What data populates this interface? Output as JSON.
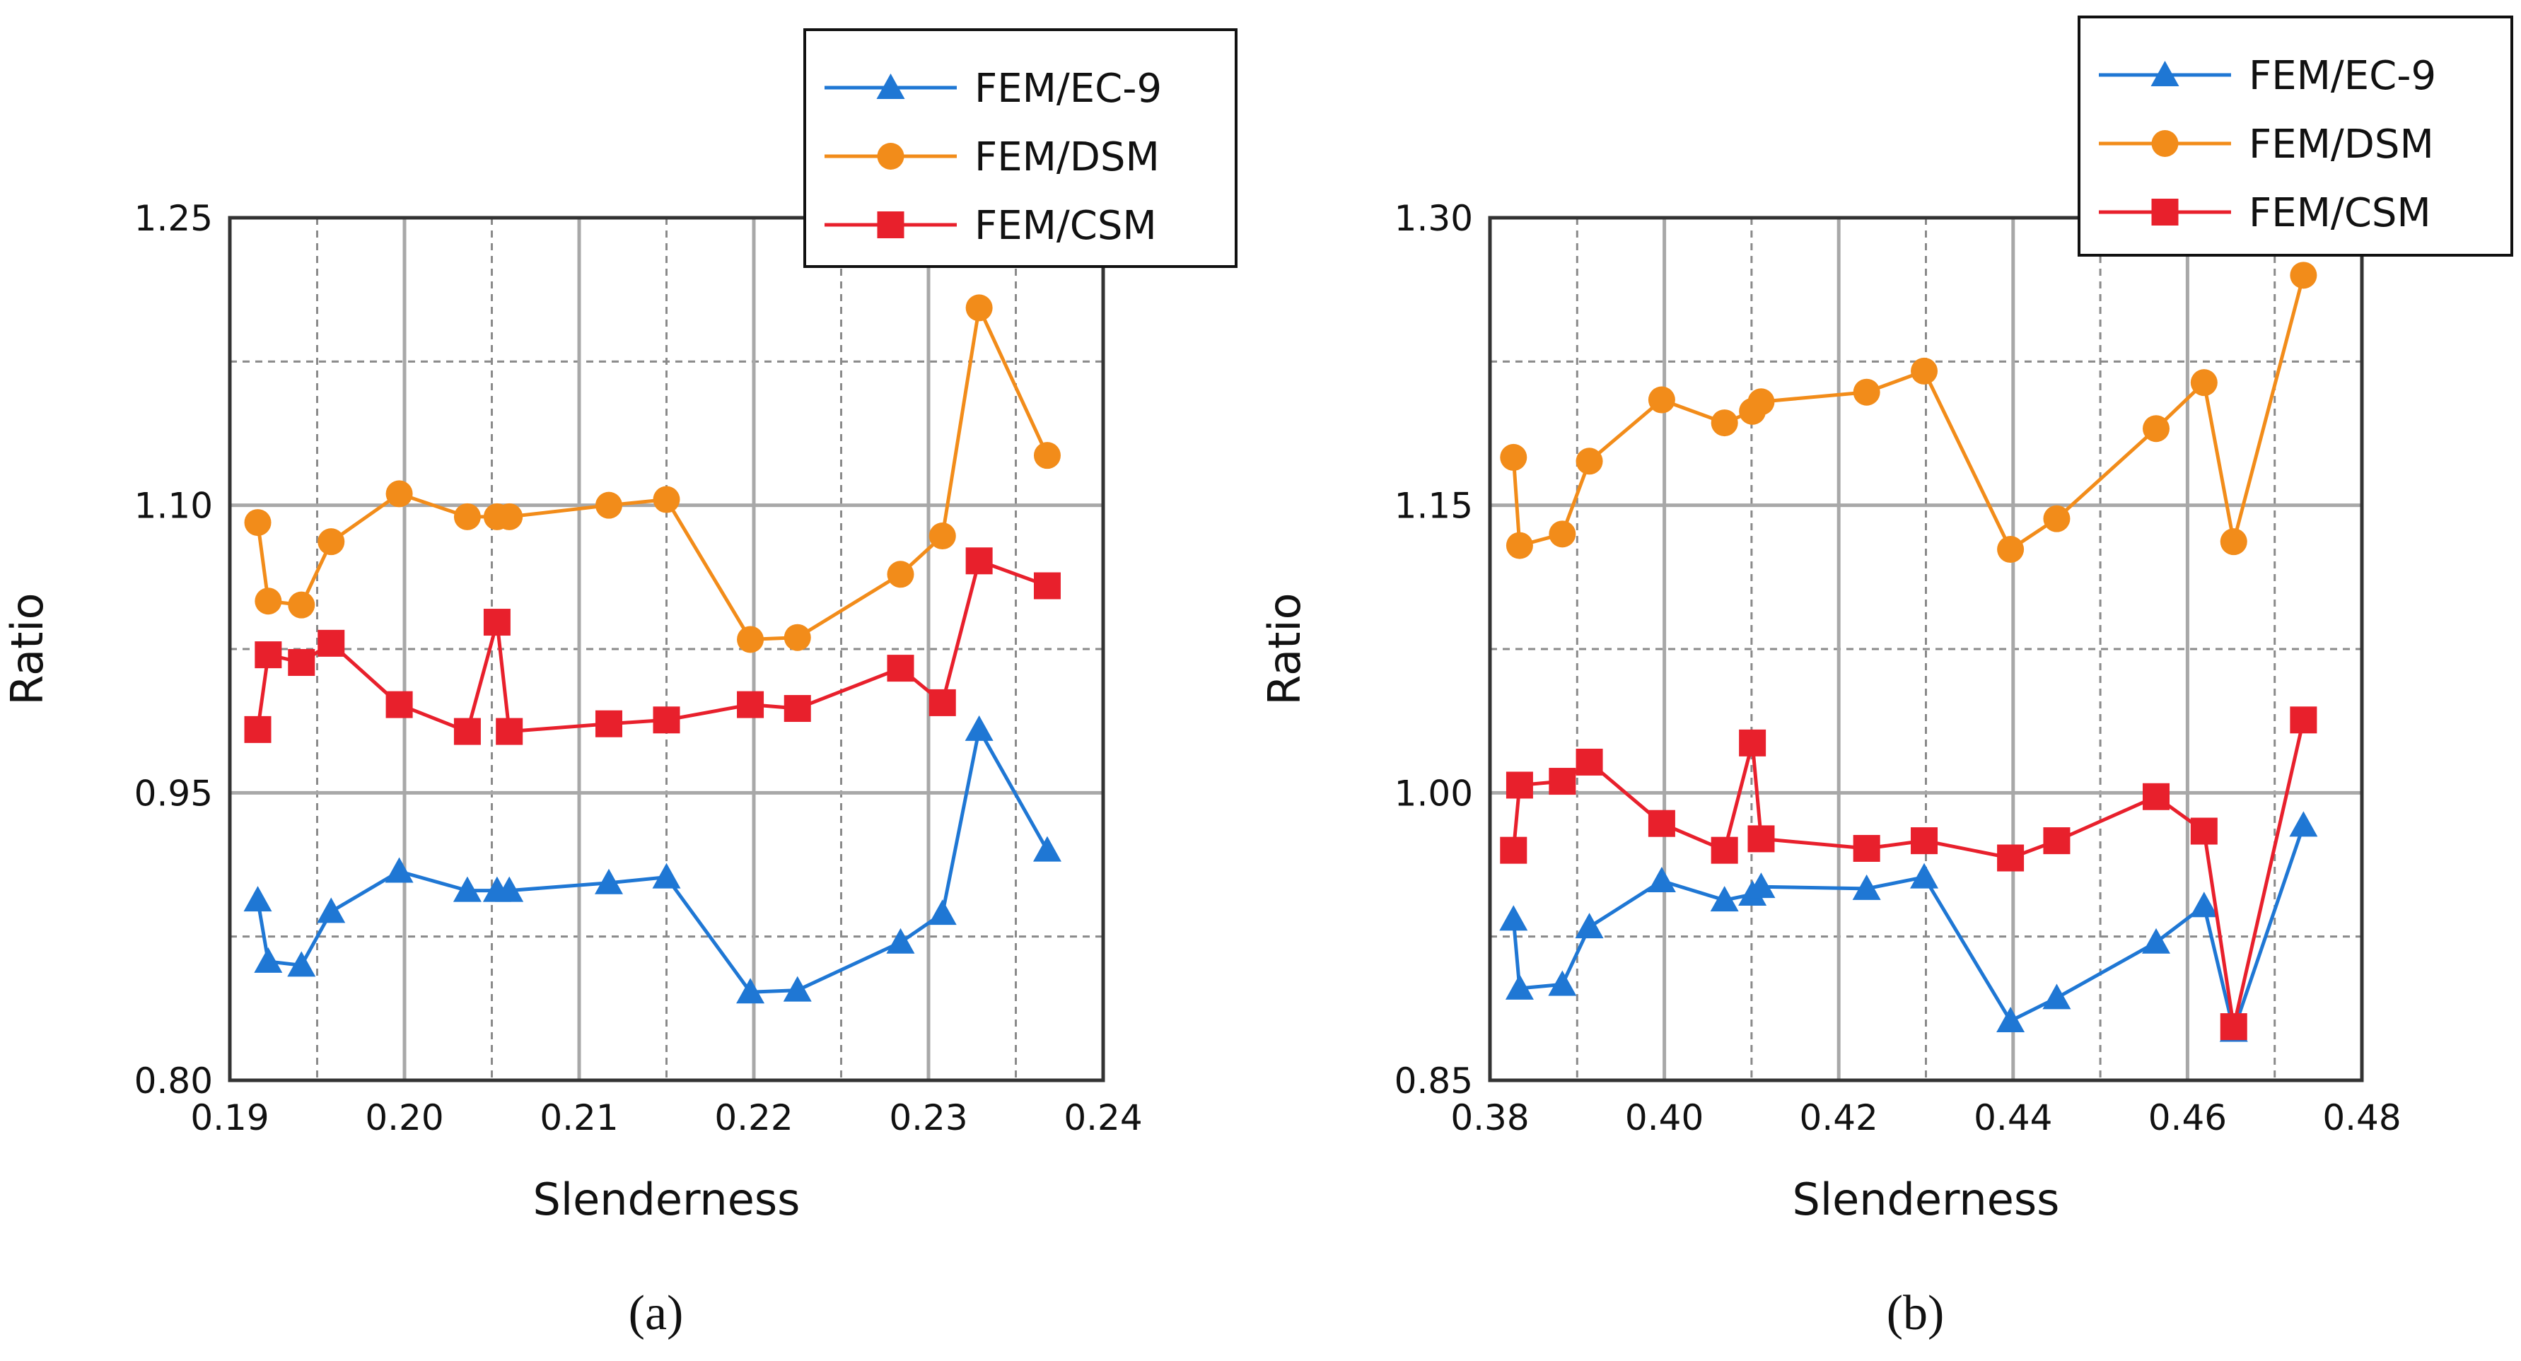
{
  "chart_data": [
    {
      "type": "line",
      "caption": "(a)",
      "xlabel": "Slenderness",
      "ylabel": "Ratio",
      "xlim": [
        0.19,
        0.24
      ],
      "ylim": [
        0.8,
        1.25
      ],
      "xticks": [
        0.19,
        0.2,
        0.21,
        0.22,
        0.23,
        0.24
      ],
      "xtick_labels": [
        "0.19",
        "0.20",
        "0.21",
        "0.22",
        "0.23",
        "0.24"
      ],
      "yticks": [
        0.8,
        0.95,
        1.1,
        1.25
      ],
      "ytick_labels": [
        "0.80",
        "0.95",
        "1.10",
        "1.25"
      ],
      "grid": true,
      "legend_position": "top-right",
      "series": [
        {
          "name": "FEM/EC-9",
          "color": "#1f77d4",
          "marker": "triangle",
          "x": [
            0.1916,
            0.1922,
            0.1941,
            0.1958,
            0.1997,
            0.2036,
            0.2053,
            0.206,
            0.2117,
            0.215,
            0.2198,
            0.2225,
            0.2284,
            0.2308,
            0.2329,
            0.2368
          ],
          "y": [
            0.894,
            0.862,
            0.86,
            0.888,
            0.909,
            0.899,
            0.899,
            0.899,
            0.903,
            0.906,
            0.846,
            0.847,
            0.872,
            0.887,
            0.983,
            0.92
          ]
        },
        {
          "name": "FEM/DSM",
          "color": "#f28c1a",
          "marker": "circle",
          "x": [
            0.1916,
            0.1922,
            0.1941,
            0.1958,
            0.1997,
            0.2036,
            0.2053,
            0.206,
            0.2117,
            0.215,
            0.2198,
            0.2225,
            0.2284,
            0.2308,
            0.2329,
            0.2368
          ],
          "y": [
            1.091,
            1.05,
            1.048,
            1.081,
            1.106,
            1.094,
            1.094,
            1.094,
            1.1,
            1.103,
            1.03,
            1.031,
            1.064,
            1.084,
            1.203,
            1.126
          ]
        },
        {
          "name": "FEM/CSM",
          "color": "#e8202c",
          "marker": "square",
          "x": [
            0.1916,
            0.1922,
            0.1941,
            0.1958,
            0.1997,
            0.2036,
            0.2053,
            0.206,
            0.2117,
            0.215,
            0.2198,
            0.2225,
            0.2284,
            0.2308,
            0.2329,
            0.2368
          ],
          "y": [
            0.983,
            1.022,
            1.018,
            1.028,
            0.996,
            0.982,
            1.039,
            0.982,
            0.986,
            0.988,
            0.996,
            0.994,
            1.015,
            0.997,
            1.071,
            1.058
          ]
        }
      ]
    },
    {
      "type": "line",
      "caption": "(b)",
      "xlabel": "Slenderness",
      "ylabel": "Ratio",
      "xlim": [
        0.38,
        0.48
      ],
      "ylim": [
        0.85,
        1.3
      ],
      "xticks": [
        0.38,
        0.4,
        0.42,
        0.44,
        0.46,
        0.48
      ],
      "xtick_labels": [
        "0.38",
        "0.40",
        "0.42",
        "0.44",
        "0.46",
        "0.48"
      ],
      "yticks": [
        0.85,
        1.0,
        1.15,
        1.3
      ],
      "ytick_labels": [
        "0.85",
        "1.00",
        "1.15",
        "1.30"
      ],
      "grid": true,
      "legend_position": "top-right",
      "series": [
        {
          "name": "FEM/EC-9",
          "color": "#1f77d4",
          "marker": "triangle",
          "x": [
            0.3827,
            0.3834,
            0.3883,
            0.3914,
            0.3997,
            0.4069,
            0.4101,
            0.4111,
            0.4232,
            0.4298,
            0.4397,
            0.445,
            0.4564,
            0.4619,
            0.4653,
            0.4733
          ],
          "y": [
            0.934,
            0.898,
            0.9,
            0.93,
            0.954,
            0.944,
            0.947,
            0.951,
            0.95,
            0.956,
            0.881,
            0.893,
            0.922,
            0.941,
            0.876,
            0.983
          ]
        },
        {
          "name": "FEM/DSM",
          "color": "#f28c1a",
          "marker": "circle",
          "x": [
            0.3827,
            0.3834,
            0.3883,
            0.3914,
            0.3997,
            0.4069,
            0.4101,
            0.4111,
            0.4232,
            0.4298,
            0.4397,
            0.445,
            0.4564,
            0.4619,
            0.4653,
            0.4733
          ],
          "y": [
            1.175,
            1.129,
            1.135,
            1.173,
            1.205,
            1.193,
            1.199,
            1.204,
            1.209,
            1.22,
            1.127,
            1.143,
            1.19,
            1.214,
            1.131,
            1.27
          ]
        },
        {
          "name": "FEM/CSM",
          "color": "#e8202c",
          "marker": "square",
          "x": [
            0.3827,
            0.3834,
            0.3883,
            0.3914,
            0.3997,
            0.4069,
            0.4101,
            0.4111,
            0.4232,
            0.4298,
            0.4397,
            0.445,
            0.4564,
            0.4619,
            0.4653,
            0.4733
          ],
          "y": [
            0.97,
            1.004,
            1.006,
            1.016,
            0.984,
            0.97,
            1.026,
            0.976,
            0.971,
            0.975,
            0.966,
            0.975,
            0.998,
            0.98,
            0.878,
            1.038
          ]
        }
      ]
    }
  ]
}
